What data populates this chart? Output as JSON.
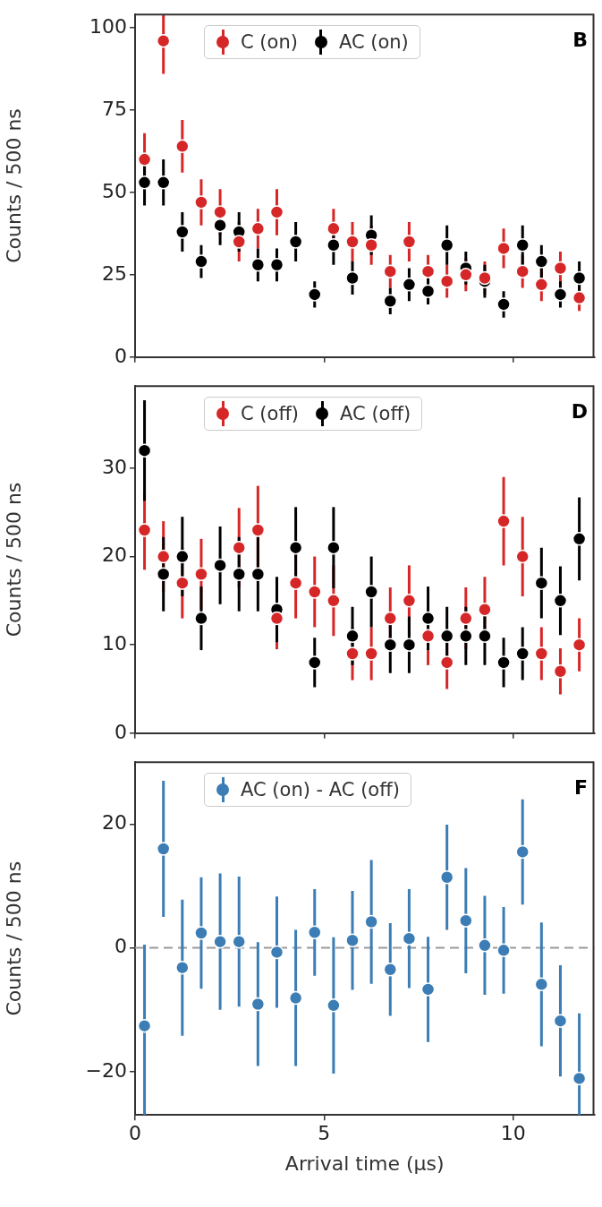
{
  "chart_data": [
    {
      "type": "scatter",
      "ylabel": "Counts / 500 ns",
      "annotations": [
        "B"
      ],
      "legend": "top",
      "marker": "circle",
      "tick_labels": "y",
      "xlim": [
        0,
        12.15
      ],
      "xticks": [
        0,
        5,
        10
      ],
      "ylim": [
        0,
        104
      ],
      "yticks": [
        0,
        25,
        50,
        75,
        100
      ],
      "x": [
        0.25,
        0.75,
        1.25,
        1.75,
        2.25,
        2.75,
        3.25,
        3.75,
        4.25,
        4.75,
        5.25,
        5.75,
        6.25,
        6.75,
        7.25,
        7.75,
        8.25,
        8.75,
        9.25,
        9.75,
        10.25,
        10.75,
        11.25,
        11.75
      ],
      "series": [
        {
          "name": "C (on)",
          "color": "#d62728",
          "values": [
            60,
            96,
            64,
            47,
            44,
            35,
            39,
            44,
            null,
            null,
            39,
            35,
            34,
            26,
            35,
            26,
            23,
            25,
            24,
            33,
            26,
            22,
            27,
            18
          ],
          "errors": [
            8,
            [
              86,
              104
            ],
            8,
            7,
            7,
            6,
            6,
            7,
            null,
            null,
            6,
            6,
            6,
            5,
            6,
            5,
            5,
            5,
            5,
            6,
            5,
            5,
            5,
            4
          ]
        },
        {
          "name": "AC (on)",
          "color": "#000000",
          "values": [
            53,
            53,
            38,
            29,
            40,
            38,
            28,
            28,
            35,
            19,
            34,
            24,
            37,
            17,
            22,
            20,
            34,
            27,
            23,
            16,
            34,
            29,
            19,
            24
          ],
          "errors": [
            7,
            7,
            6,
            5,
            6,
            6,
            5,
            5,
            6,
            4,
            6,
            5,
            6,
            4,
            5,
            4,
            6,
            5,
            5,
            4,
            6,
            5,
            4,
            5
          ]
        }
      ]
    },
    {
      "type": "scatter",
      "ylabel": "Counts / 500 ns",
      "annotations": [
        "D"
      ],
      "legend": "top",
      "marker": "circle",
      "tick_labels": "y",
      "xlim": [
        0,
        12.15
      ],
      "xticks": [
        0,
        5,
        10
      ],
      "ylim": [
        0,
        39.3
      ],
      "yticks": [
        0,
        10,
        20,
        30
      ],
      "x": [
        0.25,
        0.75,
        1.25,
        1.75,
        2.25,
        2.75,
        3.25,
        3.75,
        4.25,
        4.75,
        5.25,
        5.75,
        6.25,
        6.75,
        7.25,
        7.75,
        8.25,
        8.75,
        9.25,
        9.75,
        10.25,
        10.75,
        11.25,
        11.75
      ],
      "series": [
        {
          "name": "C (off)",
          "color": "#d62728",
          "values": [
            23,
            20,
            17,
            18,
            null,
            21,
            23,
            13,
            17,
            16,
            15,
            9,
            9,
            13,
            15,
            11,
            8,
            13,
            14,
            24,
            20,
            9,
            7,
            10
          ],
          "errors": [
            4.5,
            4,
            4,
            4,
            null,
            4.5,
            5,
            3.5,
            4,
            4,
            4,
            3,
            3,
            3.5,
            4,
            3.3,
            3,
            3.5,
            3.7,
            5,
            4.5,
            3,
            2.6,
            3
          ]
        },
        {
          "name": "AC (off)",
          "color": "#000000",
          "values": [
            32,
            18,
            20,
            13,
            19,
            18,
            18,
            14,
            21,
            8,
            21,
            11,
            16,
            10,
            10,
            13,
            11,
            11,
            11,
            8,
            9,
            17,
            15,
            22
          ],
          "errors": [
            5.7,
            4.2,
            4.5,
            3.6,
            4.4,
            4.2,
            4.2,
            3.7,
            4.6,
            2.8,
            4.6,
            3.3,
            4,
            3.2,
            3.2,
            3.6,
            3.3,
            3.3,
            3.3,
            2.8,
            3,
            4,
            3.9,
            4.7
          ]
        }
      ]
    },
    {
      "type": "scatter",
      "ylabel": "Counts / 500 ns",
      "xlabel": "Arrival time (μs)",
      "annotations": [
        "F"
      ],
      "legend": "top",
      "marker": "circle",
      "xlim": [
        0,
        12.15
      ],
      "xticks": [
        0,
        5,
        10
      ],
      "ylim": [
        -27,
        30
      ],
      "yticks": [
        {
          "value": -20,
          "label": "−20"
        },
        0,
        20
      ],
      "ref_lines": [
        {
          "axis": "y",
          "value": 0,
          "color": "#999999",
          "line_style": "dashed"
        }
      ],
      "x": [
        0.25,
        0.75,
        1.25,
        1.75,
        2.25,
        2.75,
        3.25,
        3.75,
        4.25,
        4.75,
        5.25,
        5.75,
        6.25,
        6.75,
        7.25,
        7.75,
        8.25,
        8.75,
        9.25,
        9.75,
        10.25,
        10.75,
        11.25,
        11.75
      ],
      "series": [
        {
          "name": "AC (on) - AC (off)",
          "color": "#3b7db4",
          "values": [
            -12.6,
            16,
            -3.2,
            2.4,
            1,
            1,
            -9.1,
            -0.7,
            -8.1,
            2.5,
            -9.3,
            1.2,
            4.2,
            -3.5,
            1.5,
            -6.7,
            11.4,
            4.4,
            0.4,
            -0.4,
            15.5,
            -5.9,
            -11.8,
            -21.1
          ],
          "errors": [
            [
              -27,
              0.5
            ],
            11,
            11,
            9,
            11,
            10.5,
            10,
            9,
            11,
            7,
            11,
            8,
            10,
            7.5,
            8,
            8.5,
            8.5,
            8.5,
            8,
            7,
            8.5,
            10,
            9,
            [
              -27,
              -10.6
            ]
          ]
        }
      ]
    }
  ]
}
